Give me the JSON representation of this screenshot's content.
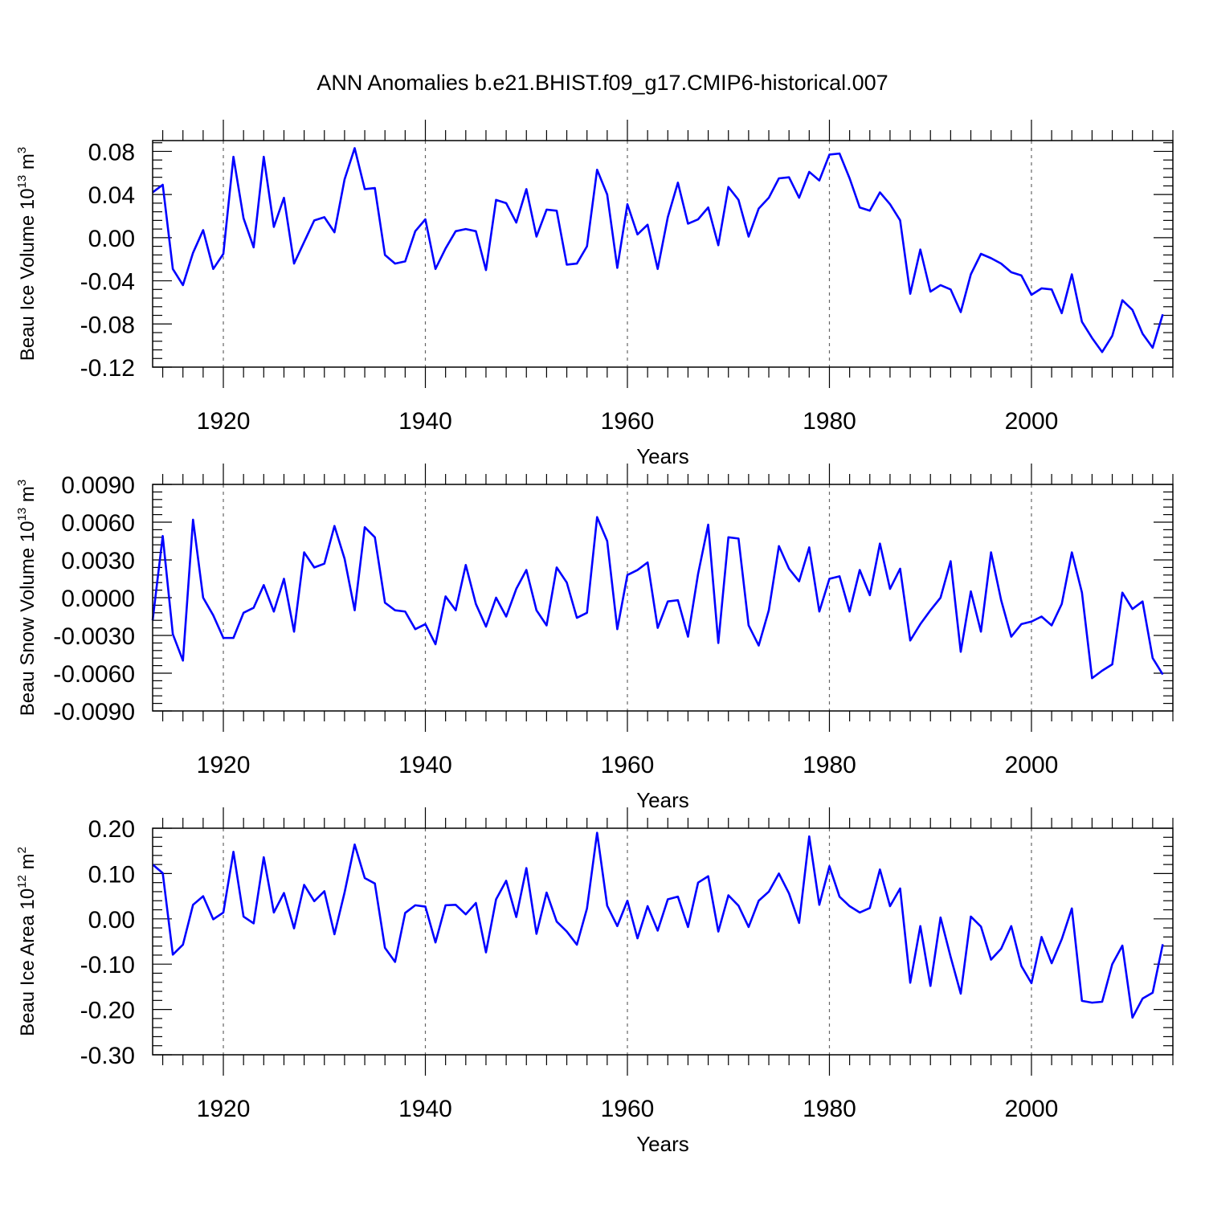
{
  "title": "ANN Anomalies b.e21.BHIST.f09_g17.CMIP6-historical.007",
  "colors": {
    "line": "#0000ff",
    "grid": "#666666",
    "axes": "#000000"
  },
  "chart_data": [
    {
      "type": "line",
      "ylabel_main": "Beau Ice Volume 10",
      "ylabel_exp": "13",
      "ylabel_unit": " m",
      "ylabel_unit_exp": "3",
      "xlabel": "Years",
      "xlim": [
        1913,
        2014
      ],
      "ylim": [
        -0.12,
        0.09
      ],
      "yticks": [
        -0.12,
        -0.08,
        -0.04,
        0.0,
        0.04,
        0.08
      ],
      "ytick_labels": [
        "-0.12",
        "-0.08",
        "-0.04",
        "0.00",
        "0.04",
        "0.08"
      ],
      "xticks": [
        1920,
        1940,
        1960,
        1980,
        2000
      ],
      "xtick_labels": [
        "1920",
        "1940",
        "1960",
        "1980",
        "2000"
      ],
      "x_start": 1913,
      "values": [
        0.042,
        0.049,
        -0.029,
        -0.044,
        -0.014,
        0.007,
        -0.029,
        -0.015,
        0.075,
        0.018,
        -0.009,
        0.075,
        0.01,
        0.037,
        -0.024,
        -0.004,
        0.016,
        0.019,
        0.005,
        0.054,
        0.083,
        0.045,
        0.046,
        -0.016,
        -0.024,
        -0.022,
        0.006,
        0.017,
        -0.029,
        -0.01,
        0.006,
        0.008,
        0.006,
        -0.03,
        0.035,
        0.032,
        0.014,
        0.045,
        0.001,
        0.026,
        0.025,
        -0.025,
        -0.024,
        -0.008,
        0.063,
        0.04,
        -0.028,
        0.031,
        0.003,
        0.012,
        -0.029,
        0.019,
        0.051,
        0.013,
        0.017,
        0.028,
        -0.007,
        0.047,
        0.035,
        0.001,
        0.027,
        0.037,
        0.055,
        0.056,
        0.037,
        0.061,
        0.053,
        0.077,
        0.078,
        0.055,
        0.028,
        0.025,
        0.042,
        0.031,
        0.016,
        -0.052,
        -0.011,
        -0.05,
        -0.044,
        -0.048,
        -0.069,
        -0.034,
        -0.015,
        -0.019,
        -0.024,
        -0.032,
        -0.035,
        -0.053,
        -0.047,
        -0.048,
        -0.07,
        -0.034,
        -0.078,
        -0.093,
        -0.106,
        -0.091,
        -0.058,
        -0.067,
        -0.089,
        -0.102,
        -0.071
      ]
    },
    {
      "type": "line",
      "ylabel_main": "Beau Snow Volume 10",
      "ylabel_exp": "13",
      "ylabel_unit": " m",
      "ylabel_unit_exp": "3",
      "xlabel": "Years",
      "xlim": [
        1913,
        2014
      ],
      "ylim": [
        -0.009,
        0.009
      ],
      "yticks": [
        -0.009,
        -0.006,
        -0.003,
        0.0,
        0.003,
        0.006,
        0.009
      ],
      "ytick_labels": [
        "-0.0090",
        "-0.0060",
        "-0.0030",
        "0.0000",
        "0.0030",
        "0.0060",
        "0.0090"
      ],
      "xticks": [
        1920,
        1940,
        1960,
        1980,
        2000
      ],
      "xtick_labels": [
        "1920",
        "1940",
        "1960",
        "1980",
        "2000"
      ],
      "x_start": 1913,
      "values": [
        -0.0018,
        0.0049,
        -0.0029,
        -0.005,
        0.0062,
        0.0,
        -0.0014,
        -0.0032,
        -0.0032,
        -0.0012,
        -0.0008,
        0.001,
        -0.0011,
        0.0015,
        -0.0027,
        0.0036,
        0.0024,
        0.0027,
        0.0057,
        0.0031,
        -0.001,
        0.0056,
        0.0048,
        -0.0004,
        -0.001,
        -0.0011,
        -0.0025,
        -0.0021,
        -0.0037,
        0.0001,
        -0.001,
        0.0026,
        -0.0005,
        -0.0023,
        0.0,
        -0.0015,
        0.0007,
        0.0022,
        -0.001,
        -0.0022,
        0.0024,
        0.0012,
        -0.0016,
        -0.0012,
        0.0064,
        0.0045,
        -0.0025,
        0.0018,
        0.0022,
        0.0028,
        -0.0024,
        -0.0003,
        -0.0002,
        -0.0031,
        0.0019,
        0.0058,
        -0.0036,
        0.0048,
        0.0047,
        -0.0022,
        -0.0038,
        -0.001,
        0.0041,
        0.0023,
        0.0013,
        0.004,
        -0.0011,
        0.0015,
        0.0017,
        -0.0011,
        0.0022,
        0.0002,
        0.0043,
        0.0007,
        0.0023,
        -0.0034,
        -0.0021,
        -0.001,
        0.0,
        0.0029,
        -0.0043,
        0.0005,
        -0.0027,
        0.0036,
        -0.0002,
        -0.0031,
        -0.0021,
        -0.0019,
        -0.0015,
        -0.0022,
        -0.0005,
        0.0036,
        0.0004,
        -0.0064,
        -0.0058,
        -0.0053,
        0.0004,
        -0.0009,
        -0.0003,
        -0.0048,
        -0.0061
      ]
    },
    {
      "type": "line",
      "ylabel_main": "Beau Ice Area 10",
      "ylabel_exp": "12",
      "ylabel_unit": " m",
      "ylabel_unit_exp": "2",
      "xlabel": "Years",
      "xlim": [
        1913,
        2014
      ],
      "ylim": [
        -0.3,
        0.2
      ],
      "yticks": [
        -0.3,
        -0.2,
        -0.1,
        0.0,
        0.1,
        0.2
      ],
      "ytick_labels": [
        "-0.30",
        "-0.20",
        "-0.10",
        "0.00",
        "0.10",
        "0.20"
      ],
      "xticks": [
        1920,
        1940,
        1960,
        1980,
        2000
      ],
      "xtick_labels": [
        "1920",
        "1940",
        "1960",
        "1980",
        "2000"
      ],
      "x_start": 1913,
      "values": [
        0.12,
        0.101,
        -0.079,
        -0.057,
        0.031,
        0.05,
        -0.001,
        0.014,
        0.148,
        0.005,
        -0.01,
        0.136,
        0.014,
        0.057,
        -0.021,
        0.075,
        0.039,
        0.061,
        -0.034,
        0.058,
        0.164,
        0.09,
        0.078,
        -0.064,
        -0.095,
        0.013,
        0.03,
        0.027,
        -0.052,
        0.03,
        0.031,
        0.01,
        0.035,
        -0.074,
        0.043,
        0.084,
        0.004,
        0.112,
        -0.033,
        0.058,
        -0.006,
        -0.028,
        -0.057,
        0.023,
        0.19,
        0.029,
        -0.016,
        0.04,
        -0.043,
        0.028,
        -0.026,
        0.043,
        0.049,
        -0.018,
        0.08,
        0.094,
        -0.028,
        0.052,
        0.029,
        -0.018,
        0.04,
        0.06,
        0.1,
        0.056,
        -0.009,
        0.182,
        0.031,
        0.116,
        0.049,
        0.028,
        0.014,
        0.024,
        0.109,
        0.028,
        0.067,
        -0.141,
        -0.016,
        -0.148,
        0.003,
        -0.084,
        -0.165,
        0.005,
        -0.017,
        -0.09,
        -0.066,
        -0.016,
        -0.104,
        -0.142,
        -0.04,
        -0.098,
        -0.045,
        0.023,
        -0.181,
        -0.185,
        -0.183,
        -0.1,
        -0.059,
        -0.218,
        -0.176,
        -0.163,
        -0.056
      ]
    }
  ]
}
